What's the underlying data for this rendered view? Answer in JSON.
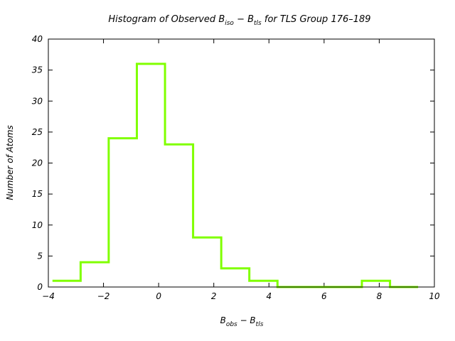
{
  "chart_data": {
    "type": "histogram",
    "title": {
      "prefix": "Histogram of Observed B",
      "sub1": "iso",
      "mid": " − B",
      "sub2": "tls",
      "suffix": " for TLS Group 176–189"
    },
    "xlabel": {
      "main1": "B",
      "sub1": "obs",
      "mid": " − B",
      "sub2": "tls"
    },
    "ylabel": "Number of Atoms",
    "xlim": [
      -4,
      10
    ],
    "ylim": [
      0,
      40
    ],
    "xticks": [
      -4,
      -2,
      0,
      2,
      4,
      6,
      8,
      10
    ],
    "yticks": [
      0,
      5,
      10,
      15,
      20,
      25,
      30,
      35,
      40
    ],
    "bin_edges": [
      -3.85,
      -2.83,
      -1.81,
      -0.79,
      0.23,
      1.25,
      2.27,
      3.29,
      4.31,
      5.33,
      6.35,
      7.37,
      8.39,
      9.41
    ],
    "counts": [
      1,
      4,
      24,
      36,
      23,
      8,
      3,
      1,
      0,
      0,
      0,
      1,
      0
    ],
    "color": "#80ff00",
    "grid": false,
    "legend": "none"
  }
}
